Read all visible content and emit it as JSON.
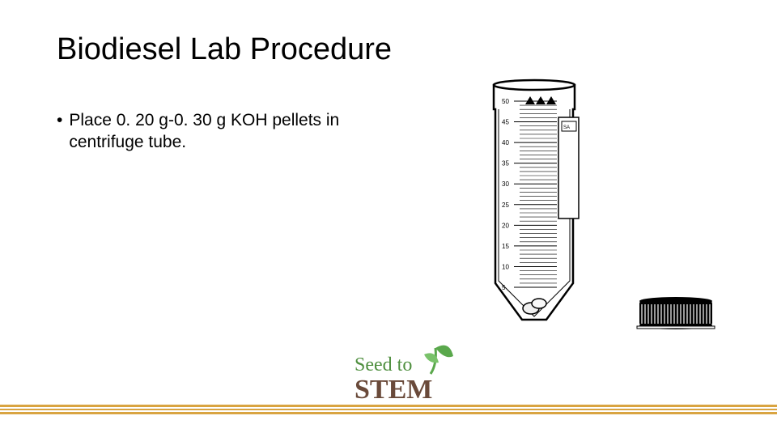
{
  "title": "Biodiesel Lab Procedure",
  "bullet_text": "Place 0. 20 g-0. 30 g KOH pellets in centrifuge tube.",
  "tube": {
    "graduations": [
      50,
      45,
      40,
      35,
      30,
      25,
      20,
      15,
      10,
      5
    ],
    "major_label_fontsize": 8,
    "outline_color": "#000000",
    "fill_color": "#ffffff",
    "pellet_fill": "#f0f0f0",
    "pellet_stroke": "#000000",
    "triangles_fill": "#000000",
    "triangle_count": 3
  },
  "cap": {
    "fill": "#000000",
    "ridge_color": "#ffffff",
    "ridge_count": 22
  },
  "logo": {
    "text_top": "Seed to",
    "text_bottom": "STEM",
    "top_color": "#4f8f3f",
    "bottom_color": "#6a4a3a",
    "leaf_color": "#5aa84c"
  },
  "footer": {
    "color": "#d9a441"
  }
}
